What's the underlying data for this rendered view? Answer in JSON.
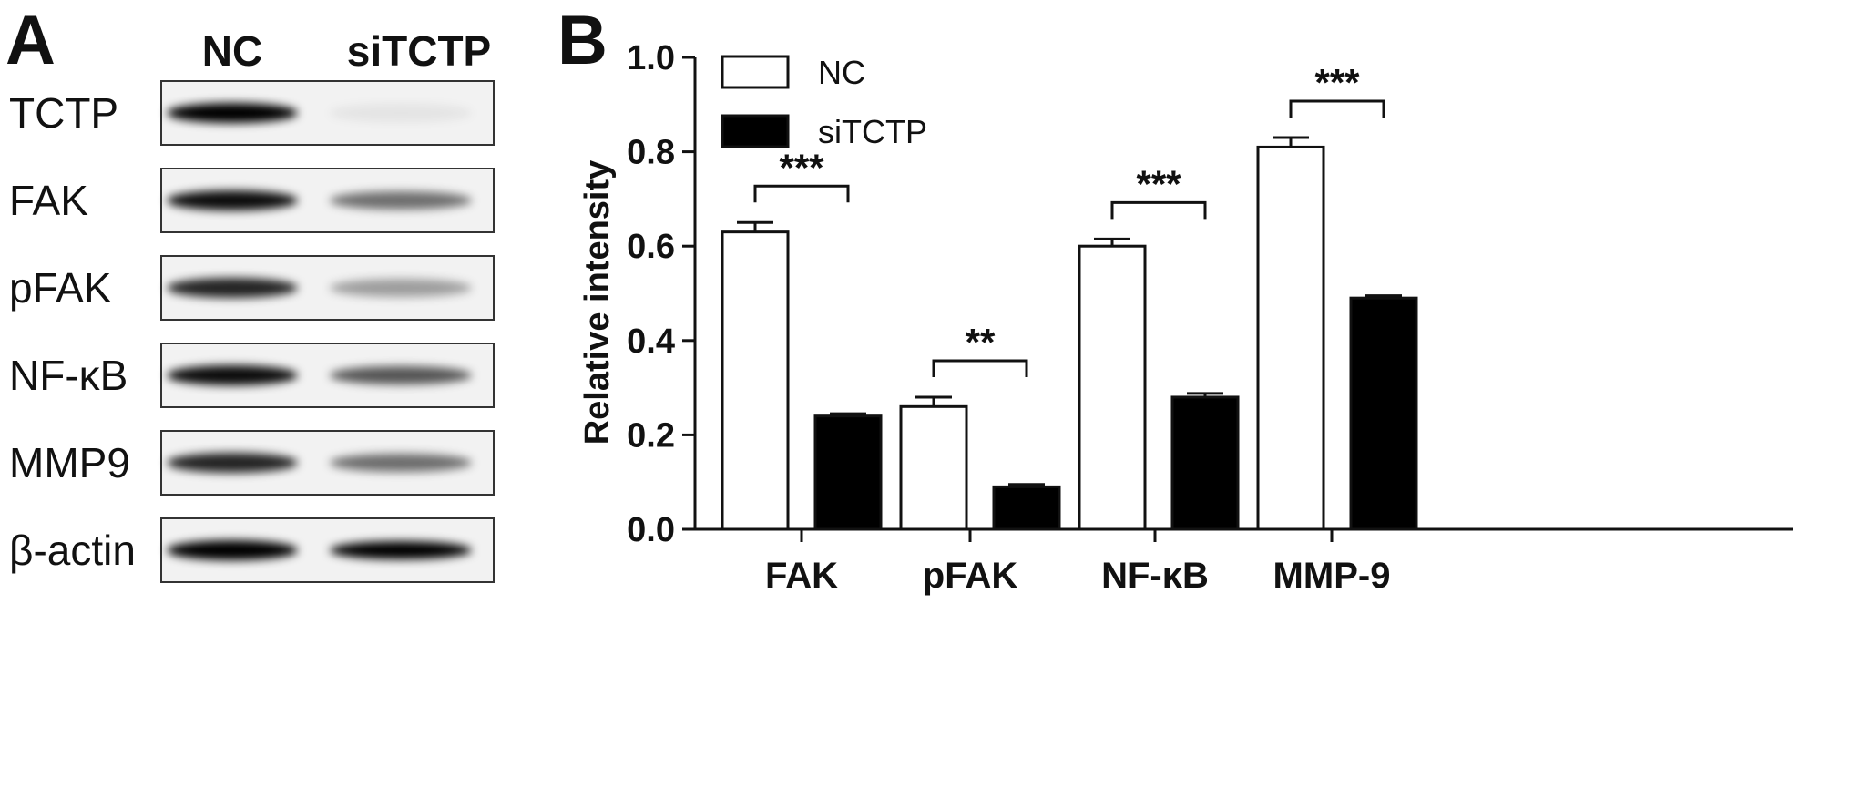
{
  "panels": {
    "a": "A",
    "b": "B"
  },
  "blot": {
    "lanes": [
      "NC",
      "siTCTP"
    ],
    "rows": [
      {
        "label": "TCTP",
        "nc": 1.0,
        "si": 0.06
      },
      {
        "label": "FAK",
        "nc": 0.95,
        "si": 0.55
      },
      {
        "label": "pFAK",
        "nc": 0.85,
        "si": 0.35
      },
      {
        "label": "NF-κB",
        "nc": 0.95,
        "si": 0.65
      },
      {
        "label": "MMP9",
        "nc": 0.85,
        "si": 0.55
      },
      {
        "label": "β-actin",
        "nc": 1.0,
        "si": 1.0
      }
    ]
  },
  "chart_data": {
    "type": "bar",
    "title": "",
    "xlabel": "",
    "ylabel": "Relative intensity",
    "ylim": [
      0,
      1.0
    ],
    "yticks": [
      "0.0",
      "0.2",
      "0.4",
      "0.6",
      "0.8",
      "1.0"
    ],
    "categories": [
      "FAK",
      "pFAK",
      "NF-κB",
      "MMP-9"
    ],
    "series": [
      {
        "name": "NC",
        "values": [
          0.63,
          0.26,
          0.6,
          0.81
        ],
        "errors": [
          0.02,
          0.02,
          0.015,
          0.02
        ],
        "fill": "#ffffff"
      },
      {
        "name": "siTCTP",
        "values": [
          0.24,
          0.09,
          0.28,
          0.49
        ],
        "errors": [
          0.005,
          0.005,
          0.008,
          0.005
        ],
        "fill": "#000000"
      }
    ],
    "significance": [
      "***",
      "**",
      "***",
      "***"
    ],
    "legend": "top-left"
  }
}
